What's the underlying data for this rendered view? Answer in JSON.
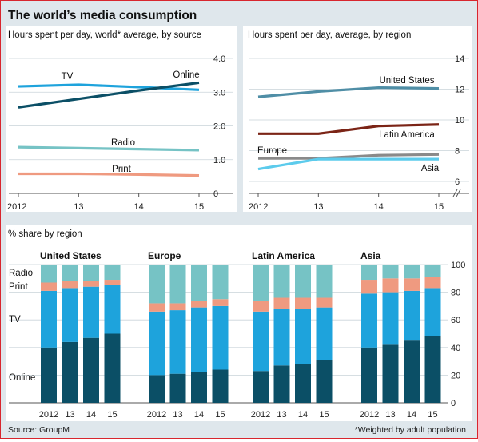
{
  "page": {
    "title": "The world’s media consumption",
    "source": "Source: GroupM",
    "footnote": "*Weighted by adult population"
  },
  "colors": {
    "online": "#0b4f66",
    "tv": "#1ea3dc",
    "print": "#ef9a80",
    "radio": "#76c3c5",
    "us": "#4f8ea6",
    "latam": "#7b2416",
    "europe": "#8a8a8a",
    "asia": "#5ccbec"
  },
  "chart_data": [
    {
      "type": "line",
      "title": "Hours spent per day, world* average, by source",
      "x": [
        "2012",
        "13",
        "14",
        "15"
      ],
      "yticks": [
        "4.0",
        "3.0",
        "2.0",
        "1.0",
        "0"
      ],
      "ylim": [
        0,
        4
      ],
      "series": [
        {
          "name": "TV",
          "color_key": "tv",
          "values": [
            3.17,
            3.22,
            3.15,
            3.07
          ]
        },
        {
          "name": "Online",
          "color_key": "online",
          "values": [
            2.55,
            2.8,
            3.05,
            3.28
          ]
        },
        {
          "name": "Radio",
          "color_key": "radio",
          "values": [
            1.37,
            1.34,
            1.31,
            1.28
          ]
        },
        {
          "name": "Print",
          "color_key": "print",
          "values": [
            0.58,
            0.58,
            0.56,
            0.53
          ]
        }
      ]
    },
    {
      "type": "line",
      "title": "Hours spent per day, average, by region",
      "x": [
        "2012",
        "13",
        "14",
        "15"
      ],
      "yticks": [
        "14",
        "12",
        "10",
        "8",
        "6"
      ],
      "ylim": [
        6,
        14
      ],
      "series": [
        {
          "name": "United States",
          "color_key": "us",
          "values": [
            11.5,
            11.85,
            12.1,
            12.05
          ]
        },
        {
          "name": "Latin America",
          "color_key": "latam",
          "values": [
            9.1,
            9.1,
            9.6,
            9.7
          ]
        },
        {
          "name": "Europe",
          "color_key": "europe",
          "values": [
            7.5,
            7.5,
            7.7,
            7.75
          ]
        },
        {
          "name": "Asia",
          "color_key": "asia",
          "values": [
            6.8,
            7.45,
            7.45,
            7.45
          ]
        }
      ]
    },
    {
      "type": "bar",
      "stacked": true,
      "title": "% share by region",
      "categories": [
        "2012",
        "13",
        "14",
        "15"
      ],
      "yticks": [
        "100",
        "80",
        "60",
        "40",
        "20",
        "0"
      ],
      "ylim": [
        0,
        100
      ],
      "segment_labels": [
        "Radio",
        "Print",
        "TV",
        "Online"
      ],
      "panels": [
        {
          "name": "United States",
          "online": [
            40,
            44,
            47,
            50
          ],
          "tv": [
            41,
            39,
            37,
            35
          ],
          "print": [
            6,
            5,
            4,
            4
          ],
          "radio": [
            13,
            12,
            12,
            11
          ]
        },
        {
          "name": "Europe",
          "online": [
            20,
            21,
            22,
            24
          ],
          "tv": [
            46,
            46,
            47,
            46
          ],
          "print": [
            6,
            5,
            5,
            5
          ],
          "radio": [
            28,
            28,
            26,
            25
          ]
        },
        {
          "name": "Latin America",
          "online": [
            23,
            27,
            28,
            31
          ],
          "tv": [
            43,
            41,
            40,
            38
          ],
          "print": [
            8,
            8,
            8,
            7
          ],
          "radio": [
            26,
            24,
            24,
            24
          ]
        },
        {
          "name": "Asia",
          "online": [
            40,
            42,
            45,
            48
          ],
          "tv": [
            39,
            38,
            36,
            35
          ],
          "print": [
            10,
            10,
            9,
            8
          ],
          "radio": [
            11,
            10,
            10,
            9
          ]
        }
      ]
    }
  ]
}
